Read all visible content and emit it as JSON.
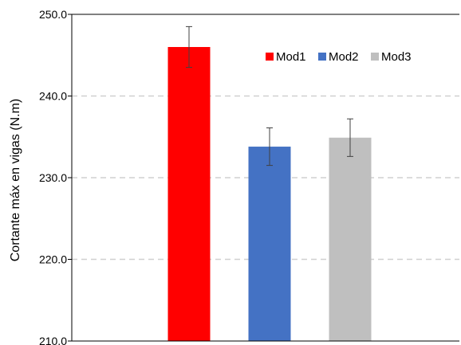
{
  "chart_data": {
    "type": "bar",
    "title": "",
    "xlabel": "",
    "ylabel": "Cortante máx en vigas (N.m)",
    "ylim": [
      210.0,
      250.0
    ],
    "yticks": [
      "210.0",
      "220.0",
      "230.0",
      "240.0",
      "250.0"
    ],
    "grid": "horizontal dashed",
    "legend_position": "top-right",
    "series": [
      {
        "name": "Mod1",
        "value": 246.0,
        "error": 2.5,
        "color": "#ff0000"
      },
      {
        "name": "Mod2",
        "value": 233.8,
        "error": 2.3,
        "color": "#4472c4"
      },
      {
        "name": "Mod3",
        "value": 234.9,
        "error": 2.3,
        "color": "#bfbfbf"
      }
    ]
  }
}
